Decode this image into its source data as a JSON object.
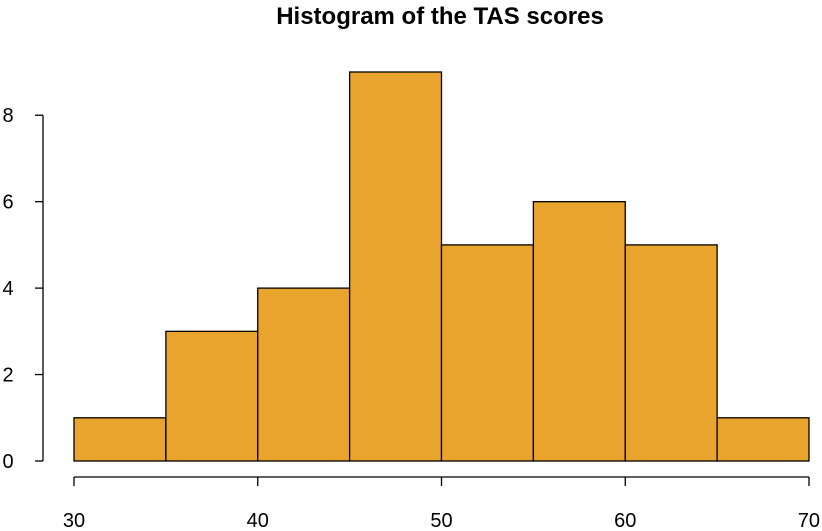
{
  "chart_data": {
    "type": "bar",
    "title": "Histogram of the TAS scores",
    "xlabel": "",
    "ylabel": "",
    "bins": [
      {
        "start": 30,
        "end": 35,
        "count": 1
      },
      {
        "start": 35,
        "end": 40,
        "count": 3
      },
      {
        "start": 40,
        "end": 45,
        "count": 4
      },
      {
        "start": 45,
        "end": 50,
        "count": 9
      },
      {
        "start": 50,
        "end": 55,
        "count": 5
      },
      {
        "start": 55,
        "end": 60,
        "count": 6
      },
      {
        "start": 60,
        "end": 65,
        "count": 5
      },
      {
        "start": 65,
        "end": 70,
        "count": 1
      }
    ],
    "xlim": [
      30,
      70
    ],
    "ylim": [
      0,
      9
    ],
    "x_ticks": [
      30,
      40,
      50,
      60,
      70
    ],
    "y_ticks": [
      0,
      2,
      4,
      6,
      8
    ],
    "bar_color": "#E8A42C",
    "grid": false,
    "legend": "none"
  }
}
